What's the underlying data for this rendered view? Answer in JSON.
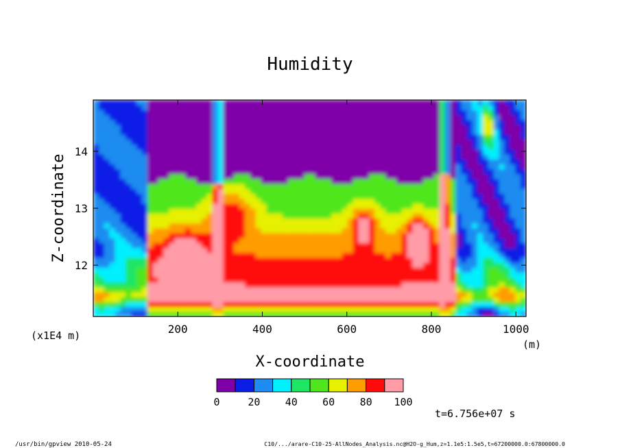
{
  "chart_data": {
    "type": "heatmap",
    "title": "Humidity",
    "xlabel": "X-coordinate",
    "ylabel": "Z-coordinate",
    "x_unit": "(m)",
    "y_scale_note": "(x1E4 m)",
    "xlim": [
      0,
      1024
    ],
    "ylim": [
      11.1,
      14.9
    ],
    "x_ticks": [
      200,
      400,
      600,
      800,
      1000
    ],
    "y_ticks": [
      12,
      13,
      14
    ],
    "x_tick_labels": [
      "200",
      "400",
      "600",
      "800",
      "1000"
    ],
    "y_tick_labels": [
      "12",
      "13",
      "14"
    ],
    "colorbar": {
      "levels": [
        0,
        10,
        20,
        30,
        40,
        50,
        60,
        70,
        80,
        90,
        100
      ],
      "labels": [
        "0",
        "20",
        "40",
        "60",
        "80",
        "100"
      ],
      "colors": [
        "#7f00a8",
        "#0a1ee6",
        "#1e8cf0",
        "#00f0ff",
        "#1ee664",
        "#50e61e",
        "#e6f000",
        "#ff9c00",
        "#ff0a0a",
        "#ff9ca8"
      ]
    },
    "time_label": "t=6.756e+07 s",
    "footer_left": "/usr/bin/gpview  2010-05-24",
    "footer_right": "C10/.../arare-C10-25-AllNodes_Analysis.nc@H2O-g_Hum,z=1.1e5:1.5e5,t=67200000.0:67800000.0"
  }
}
